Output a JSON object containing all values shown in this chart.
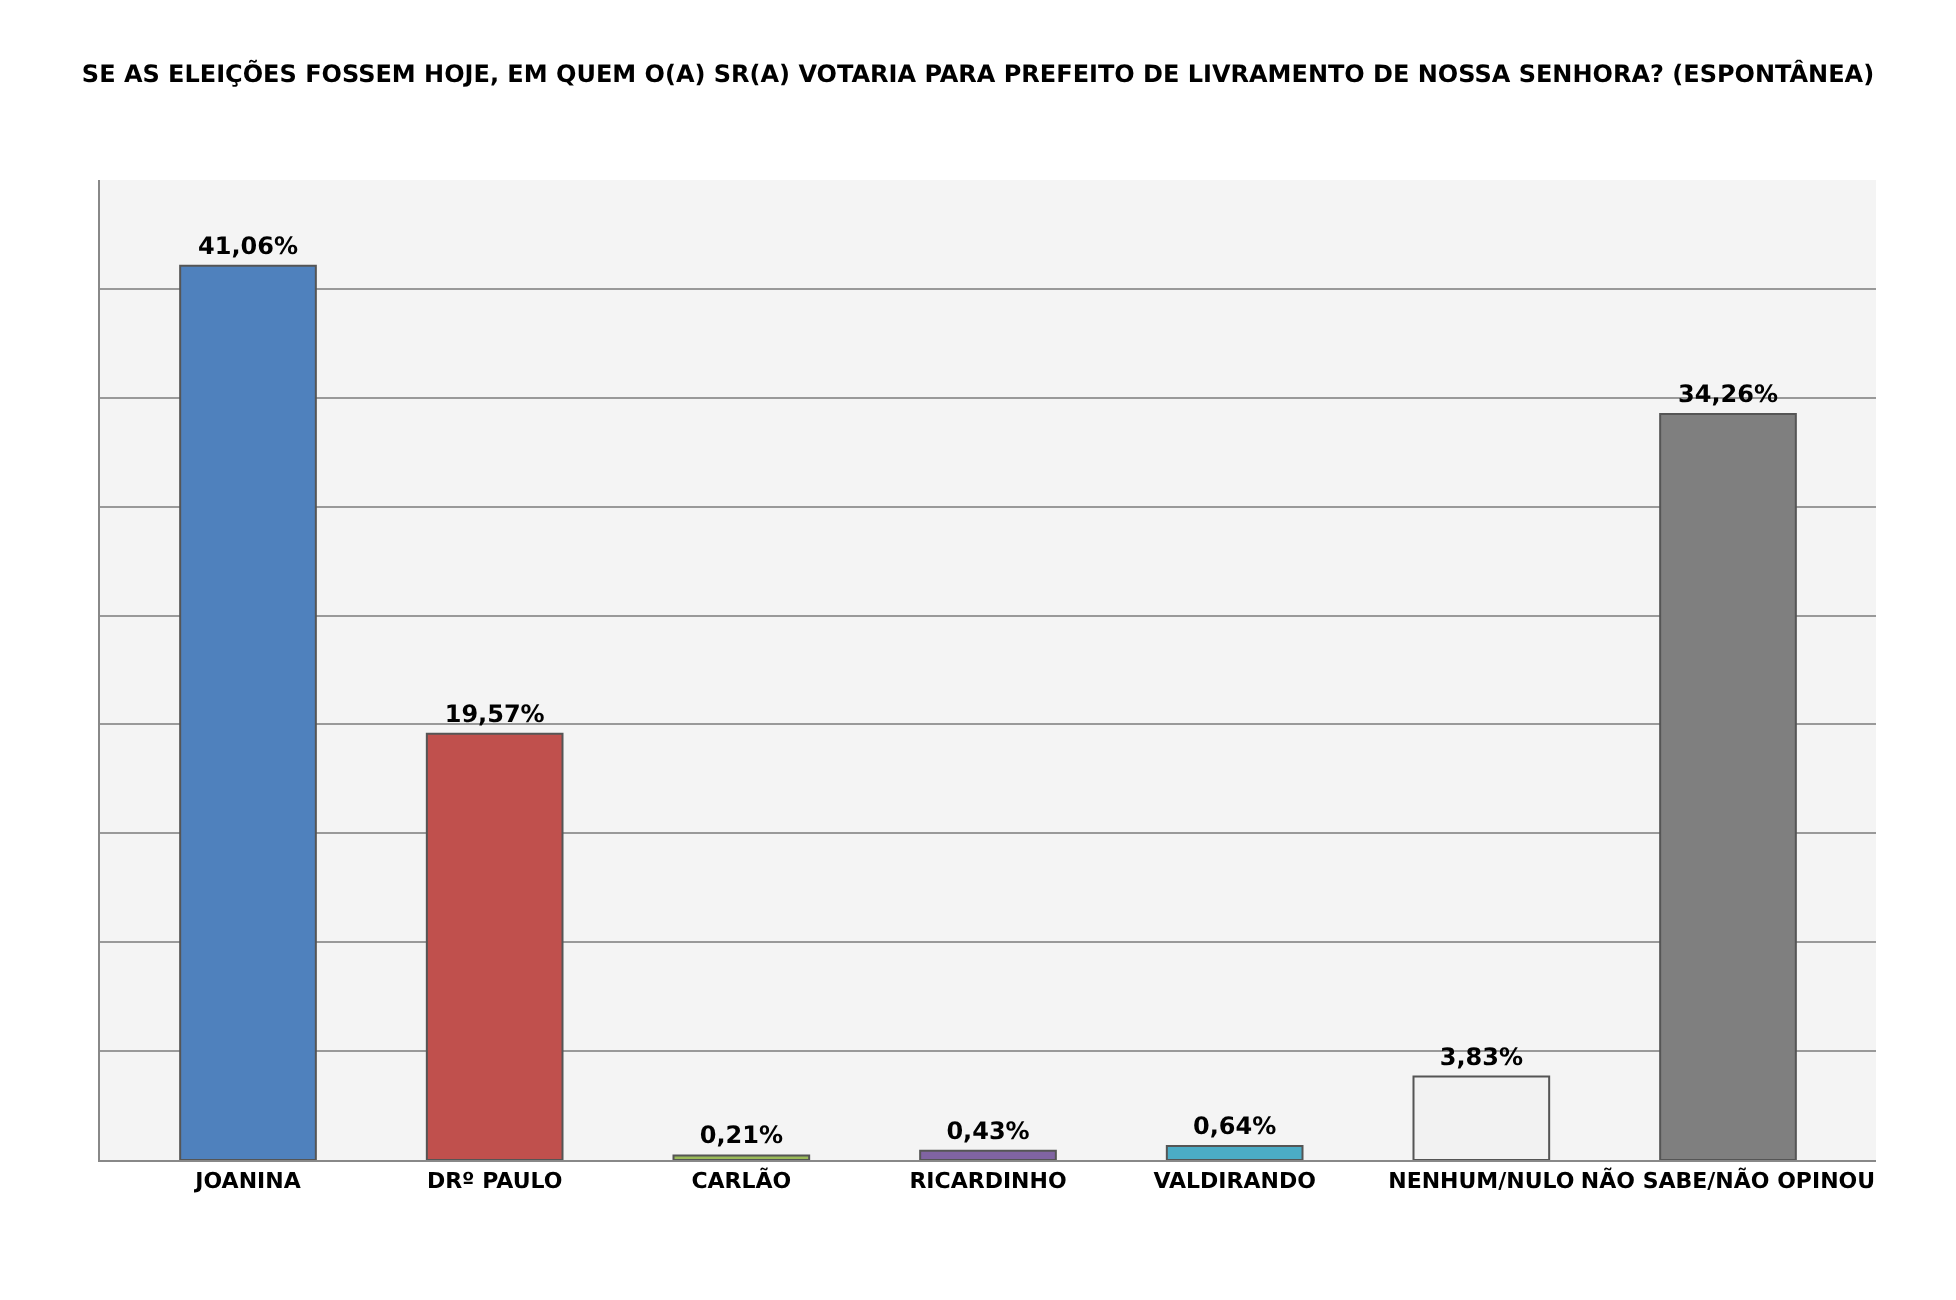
{
  "chart_data": {
    "type": "bar",
    "title": "SE AS ELEIÇÕES FOSSEM HOJE, EM QUEM O(A) SR(A) VOTARIA PARA PREFEITO DE LIVRAMENTO DE NOSSA SENHORA? (ESPONTÂNEA)",
    "categories": [
      "JOANINA",
      "DRº PAULO",
      "CARLÃO",
      "RICARDINHO",
      "VALDIRANDO",
      "NENHUM/NULO",
      "NÃO SABE/NÃO OPINOU"
    ],
    "values": [
      41.06,
      19.57,
      0.21,
      0.43,
      0.64,
      3.83,
      34.26
    ],
    "colors": [
      "#4f81bd",
      "#c0504d",
      "#9bbb59",
      "#8064a2",
      "#4bacc6",
      "#f2f2f2",
      "#7f7f7f"
    ],
    "value_labels": [
      "41,06%",
      "19,57%",
      "0,21%",
      "0,43%",
      "0,64%",
      "3,83%",
      "34,26%"
    ],
    "ylim": [
      0,
      45
    ],
    "yticks": [
      {
        "value": 0,
        "label": null
      },
      {
        "value": 5,
        "label": null
      },
      {
        "value": 10,
        "label": null
      },
      {
        "value": 15,
        "label": null
      },
      {
        "value": 20,
        "label": null
      },
      {
        "value": 25,
        "label": null
      },
      {
        "value": 30,
        "label": null
      },
      {
        "value": 35,
        "label": null
      },
      {
        "value": 40,
        "label": null
      },
      {
        "value": 45,
        "label": null
      }
    ],
    "grid": "y",
    "tick_labels": "x"
  }
}
